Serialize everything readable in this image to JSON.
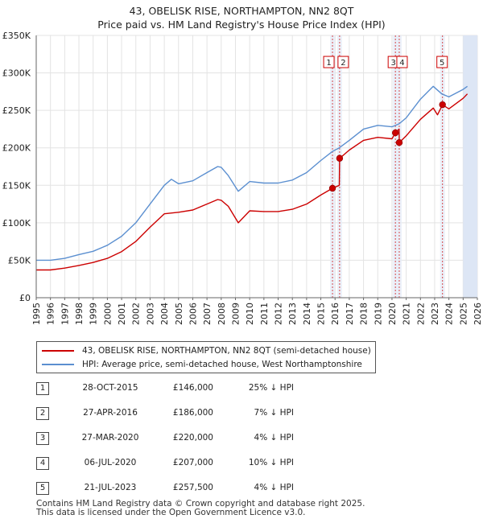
{
  "title_line1": "43, OBELISK RISE, NORTHAMPTON, NN2 8QT",
  "title_line2": "Price paid vs. HM Land Registry's House Price Index (HPI)",
  "legend": {
    "property": "43, OBELISK RISE, NORTHAMPTON, NN2 8QT (semi-detached house)",
    "hpi": "HPI: Average price, semi-detached house, West Northamptonshire"
  },
  "colors": {
    "property": "#cc0000",
    "hpi": "#5b8fd0",
    "marker_line": "#cc0000",
    "forecast_band": "#dde6f5",
    "marker_band": "#e6ecf7"
  },
  "transactions": [
    {
      "num": "1",
      "date": "28-OCT-2015",
      "price": "£146,000",
      "hpi": "25% ↓ HPI"
    },
    {
      "num": "2",
      "date": "27-APR-2016",
      "price": "£186,000",
      "hpi": "7% ↓ HPI"
    },
    {
      "num": "3",
      "date": "27-MAR-2020",
      "price": "£220,000",
      "hpi": "4% ↓ HPI"
    },
    {
      "num": "4",
      "date": "06-JUL-2020",
      "price": "£207,000",
      "hpi": "10% ↓ HPI"
    },
    {
      "num": "5",
      "date": "21-JUL-2023",
      "price": "£257,500",
      "hpi": "4% ↓ HPI"
    }
  ],
  "footer": {
    "line1": "Contains HM Land Registry data © Crown copyright and database right 2025.",
    "line2": "This data is licensed under the Open Government Licence v3.0."
  },
  "chart_data": {
    "type": "line",
    "xlim": [
      1995,
      2026
    ],
    "ylim": [
      0,
      350000
    ],
    "x_ticks": [
      1995,
      1996,
      1997,
      1998,
      1999,
      2000,
      2001,
      2002,
      2003,
      2004,
      2005,
      2006,
      2007,
      2008,
      2009,
      2010,
      2011,
      2012,
      2013,
      2014,
      2015,
      2016,
      2017,
      2018,
      2019,
      2020,
      2021,
      2022,
      2023,
      2024,
      2025,
      2026
    ],
    "y_ticks": [
      {
        "value": 0,
        "label": "£0"
      },
      {
        "value": 50000,
        "label": "£50K"
      },
      {
        "value": 100000,
        "label": "£100K"
      },
      {
        "value": 150000,
        "label": "£150K"
      },
      {
        "value": 200000,
        "label": "£200K"
      },
      {
        "value": 250000,
        "label": "£250K"
      },
      {
        "value": 300000,
        "label": "£300K"
      },
      {
        "value": 350000,
        "label": "£350K"
      }
    ],
    "grid": true,
    "forecast_start": 2025.0,
    "series": [
      {
        "name": "HPI: Average price, semi-detached house, West Northamptonshire",
        "color": "#5b8fd0",
        "points": [
          [
            1995.0,
            50000
          ],
          [
            1996.0,
            50000
          ],
          [
            1997.0,
            52500
          ],
          [
            1998.0,
            57500
          ],
          [
            1999.0,
            62000
          ],
          [
            2000.0,
            70000
          ],
          [
            2001.0,
            82000
          ],
          [
            2002.0,
            100000
          ],
          [
            2003.0,
            125000
          ],
          [
            2004.0,
            150000
          ],
          [
            2004.5,
            158000
          ],
          [
            2005.0,
            152000
          ],
          [
            2006.0,
            156000
          ],
          [
            2007.0,
            167000
          ],
          [
            2007.75,
            175000
          ],
          [
            2008.0,
            174000
          ],
          [
            2008.5,
            163000
          ],
          [
            2009.2,
            142000
          ],
          [
            2010.0,
            155000
          ],
          [
            2011.0,
            153000
          ],
          [
            2012.0,
            153000
          ],
          [
            2013.0,
            157000
          ],
          [
            2014.0,
            167000
          ],
          [
            2015.0,
            183000
          ],
          [
            2015.8,
            195000
          ],
          [
            2016.3,
            200000
          ],
          [
            2017.0,
            210000
          ],
          [
            2018.0,
            225000
          ],
          [
            2019.0,
            230000
          ],
          [
            2020.0,
            228000
          ],
          [
            2020.5,
            232000
          ],
          [
            2021.0,
            240000
          ],
          [
            2022.0,
            265000
          ],
          [
            2022.9,
            282000
          ],
          [
            2023.5,
            272000
          ],
          [
            2024.0,
            268000
          ],
          [
            2025.0,
            278000
          ],
          [
            2025.3,
            282000
          ]
        ]
      },
      {
        "name": "43, OBELISK RISE, NORTHAMPTON, NN2 8QT (semi-detached house)",
        "color": "#cc0000",
        "points": [
          [
            1995.0,
            37000
          ],
          [
            1996.0,
            37000
          ],
          [
            1997.0,
            39500
          ],
          [
            1998.0,
            43000
          ],
          [
            1999.0,
            47000
          ],
          [
            2000.0,
            52500
          ],
          [
            2001.0,
            61500
          ],
          [
            2002.0,
            75000
          ],
          [
            2003.0,
            94000
          ],
          [
            2004.0,
            112000
          ],
          [
            2005.0,
            114000
          ],
          [
            2006.0,
            117000
          ],
          [
            2007.0,
            125000
          ],
          [
            2007.75,
            131000
          ],
          [
            2008.0,
            130000
          ],
          [
            2008.5,
            122000
          ],
          [
            2009.2,
            100000
          ],
          [
            2010.0,
            116000
          ],
          [
            2011.0,
            115000
          ],
          [
            2012.0,
            115000
          ],
          [
            2013.0,
            118000
          ],
          [
            2014.0,
            125000
          ],
          [
            2015.0,
            137000
          ],
          [
            2015.82,
            146000
          ],
          [
            2016.3,
            150000
          ],
          [
            2016.32,
            186000
          ],
          [
            2017.0,
            197000
          ],
          [
            2018.0,
            210000
          ],
          [
            2019.0,
            214000
          ],
          [
            2020.0,
            212000
          ],
          [
            2020.24,
            220000
          ],
          [
            2020.5,
            225000
          ],
          [
            2020.51,
            207000
          ],
          [
            2021.0,
            216000
          ],
          [
            2022.0,
            238000
          ],
          [
            2022.9,
            253000
          ],
          [
            2023.2,
            244000
          ],
          [
            2023.55,
            257500
          ],
          [
            2024.0,
            252000
          ],
          [
            2025.0,
            266000
          ],
          [
            2025.3,
            272000
          ]
        ]
      }
    ],
    "transactions": [
      {
        "label": "1",
        "x": 2015.82,
        "y": 146000
      },
      {
        "label": "2",
        "x": 2016.32,
        "y": 186000
      },
      {
        "label": "3",
        "x": 2020.24,
        "y": 220000
      },
      {
        "label": "4",
        "x": 2020.51,
        "y": 207000
      },
      {
        "label": "5",
        "x": 2023.55,
        "y": 257500
      }
    ]
  }
}
